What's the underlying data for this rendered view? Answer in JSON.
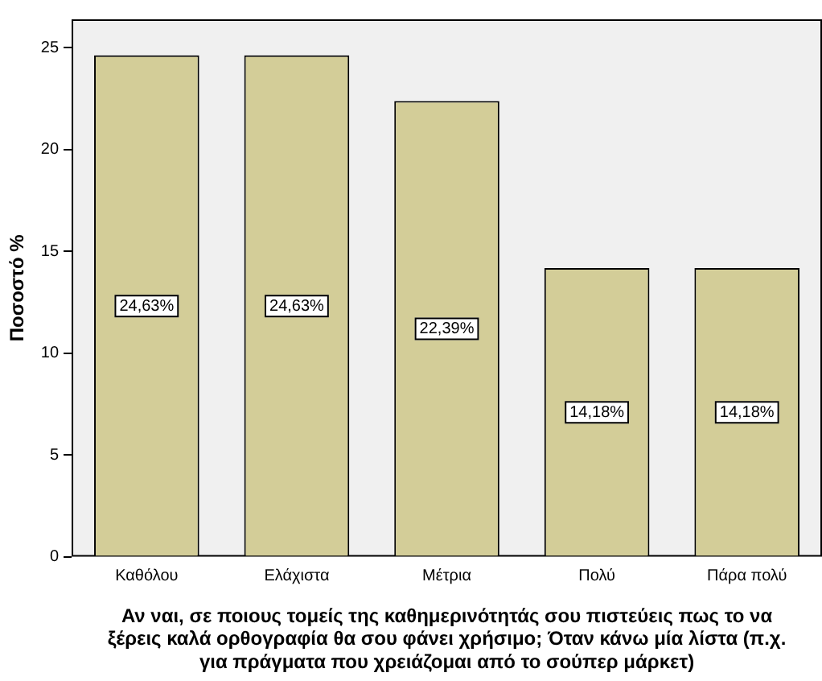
{
  "chart_data": {
    "type": "bar",
    "categories": [
      "Καθόλου",
      "Ελάχιστα",
      "Μέτρια",
      "Πολύ",
      "Πάρα πολύ"
    ],
    "values": [
      24.63,
      24.63,
      22.39,
      14.18,
      14.18
    ],
    "value_labels": [
      "24,63%",
      "24,63%",
      "22,39%",
      "14,18%",
      "14,18%"
    ],
    "color": "#d3cd98",
    "ylabel": "Ποσοστό %",
    "xlabel": "Αν ναι, σε ποιους τομείς της καθημερινότητάς σου πιστεύεις πως το να ξέρεις καλά ορθογραφία θα σου φάνει χρήσιμο; Όταν κάνω μία λίστα (π.χ. για πράγματα που χρειάζομαι από το σούπερ μάρκετ)",
    "ylim": [
      0,
      26.4
    ],
    "yticks": [
      0,
      5,
      10,
      15,
      20,
      25
    ],
    "grid": false,
    "legend": false
  }
}
